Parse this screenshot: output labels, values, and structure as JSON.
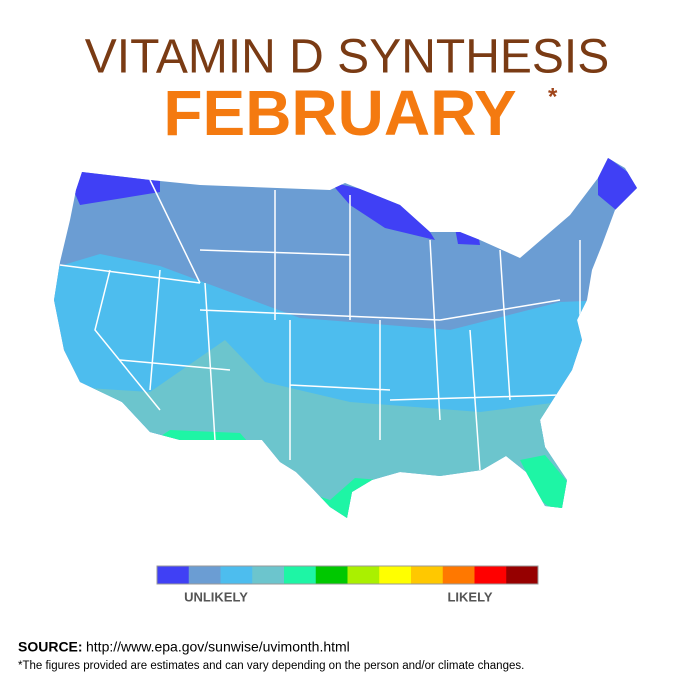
{
  "header": {
    "title": "VITAMIN D SYNTHESIS",
    "subtitle": "FEBRUARY",
    "asterisk": "*"
  },
  "legend": {
    "colors": [
      "#4040f5",
      "#6b9dd3",
      "#4dbdee",
      "#6cc5cd",
      "#1ef5a5",
      "#00c800",
      "#aaf000",
      "#ffff00",
      "#ffc800",
      "#ff7800",
      "#ff0000",
      "#960000"
    ],
    "low_label": "UNLIKELY",
    "high_label": "LIKELY"
  },
  "source": {
    "label": "SOURCE:",
    "url": "http://www.epa.gov/sunwise/uvimonth.html"
  },
  "footnote": "*The figures provided are estimates and can vary depending on the person and/or climate changes."
}
